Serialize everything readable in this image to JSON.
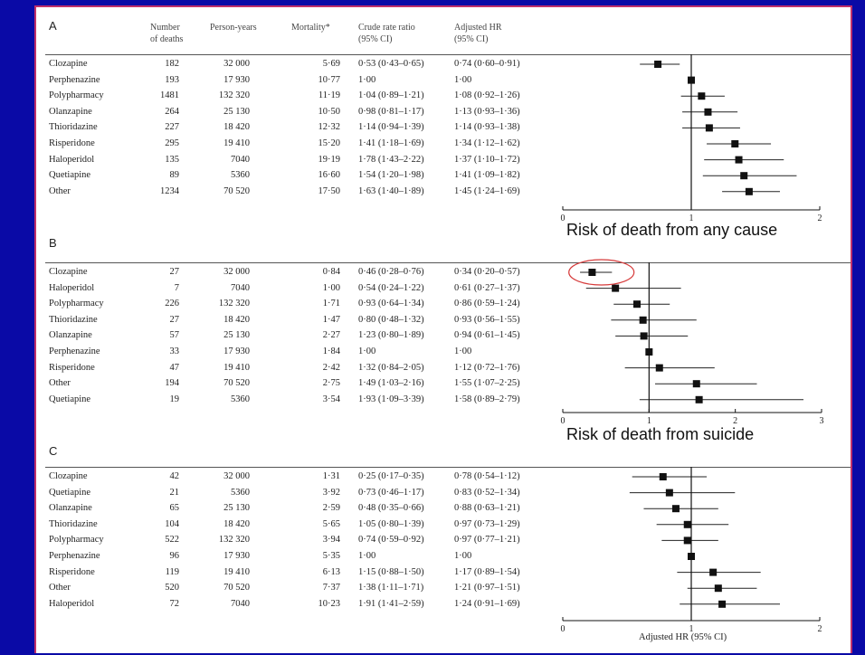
{
  "headers": {
    "deaths_line1": "Number",
    "deaths_line2": "of deaths",
    "person_years": "Person-years",
    "mortality": "Mortality*",
    "crude_line1": "Crude rate ratio",
    "crude_line2": "(95% CI)",
    "adj_line1": "Adjusted HR",
    "adj_line2": "(95% CI)"
  },
  "annotations": {
    "any_cause": "Risk of death from any cause",
    "suicide": "Risk of death from suicide",
    "x_axis_label": "Adjusted HR (95% CI)"
  },
  "colors": {
    "background": "#0a0aa6",
    "panel_border": "#c0306a",
    "highlight_ellipse": "#d63a3a"
  },
  "chart_data": [
    {
      "type": "forest",
      "panel": "A",
      "xlim": [
        0,
        2
      ],
      "xticks": [
        "0",
        "1",
        "2"
      ],
      "reference_line": 1,
      "rows": [
        {
          "drug": "Clozapine",
          "deaths": "182",
          "person_years": "32 000",
          "mortality": "5·69",
          "crude": "0·53 (0·43–0·65)",
          "adjusted": "0·74 (0·60–0·91)",
          "hr": 0.74,
          "lo": 0.6,
          "hi": 0.91
        },
        {
          "drug": "Perphenazine",
          "deaths": "193",
          "person_years": "17 930",
          "mortality": "10·77",
          "crude": "1·00",
          "adjusted": "1·00",
          "hr": 1.0,
          "lo": 1.0,
          "hi": 1.0
        },
        {
          "drug": "Polypharmacy",
          "deaths": "1481",
          "person_years": "132 320",
          "mortality": "11·19",
          "crude": "1·04 (0·89–1·21)",
          "adjusted": "1·08 (0·92–1·26)",
          "hr": 1.08,
          "lo": 0.92,
          "hi": 1.26
        },
        {
          "drug": "Olanzapine",
          "deaths": "264",
          "person_years": "25 130",
          "mortality": "10·50",
          "crude": "0·98 (0·81–1·17)",
          "adjusted": "1·13 (0·93–1·36)",
          "hr": 1.13,
          "lo": 0.93,
          "hi": 1.36
        },
        {
          "drug": "Thioridazine",
          "deaths": "227",
          "person_years": "18 420",
          "mortality": "12·32",
          "crude": "1·14 (0·94–1·39)",
          "adjusted": "1·14 (0·93–1·38)",
          "hr": 1.14,
          "lo": 0.93,
          "hi": 1.38
        },
        {
          "drug": "Risperidone",
          "deaths": "295",
          "person_years": "19 410",
          "mortality": "15·20",
          "crude": "1·41 (1·18–1·69)",
          "adjusted": "1·34 (1·12–1·62)",
          "hr": 1.34,
          "lo": 1.12,
          "hi": 1.62
        },
        {
          "drug": "Haloperidol",
          "deaths": "135",
          "person_years": "7040",
          "mortality": "19·19",
          "crude": "1·78 (1·43–2·22)",
          "adjusted": "1·37 (1·10–1·72)",
          "hr": 1.37,
          "lo": 1.1,
          "hi": 1.72
        },
        {
          "drug": "Quetiapine",
          "deaths": "89",
          "person_years": "5360",
          "mortality": "16·60",
          "crude": "1·54 (1·20–1·98)",
          "adjusted": "1·41 (1·09–1·82)",
          "hr": 1.41,
          "lo": 1.09,
          "hi": 1.82
        },
        {
          "drug": "Other",
          "deaths": "1234",
          "person_years": "70 520",
          "mortality": "17·50",
          "crude": "1·63 (1·40–1·89)",
          "adjusted": "1·45 (1·24–1·69)",
          "hr": 1.45,
          "lo": 1.24,
          "hi": 1.69
        }
      ]
    },
    {
      "type": "forest",
      "panel": "B",
      "xlim": [
        0,
        3
      ],
      "xticks": [
        "0",
        "1",
        "2",
        "3"
      ],
      "reference_line": 1,
      "rows": [
        {
          "drug": "Clozapine",
          "deaths": "27",
          "person_years": "32 000",
          "mortality": "0·84",
          "crude": "0·46 (0·28–0·76)",
          "adjusted": "0·34 (0·20–0·57)",
          "hr": 0.34,
          "lo": 0.2,
          "hi": 0.57
        },
        {
          "drug": "Haloperidol",
          "deaths": "7",
          "person_years": "7040",
          "mortality": "1·00",
          "crude": "0·54 (0·24–1·22)",
          "adjusted": "0·61 (0·27–1·37)",
          "hr": 0.61,
          "lo": 0.27,
          "hi": 1.37
        },
        {
          "drug": "Polypharmacy",
          "deaths": "226",
          "person_years": "132 320",
          "mortality": "1·71",
          "crude": "0·93 (0·64–1·34)",
          "adjusted": "0·86 (0·59–1·24)",
          "hr": 0.86,
          "lo": 0.59,
          "hi": 1.24
        },
        {
          "drug": "Thioridazine",
          "deaths": "27",
          "person_years": "18 420",
          "mortality": "1·47",
          "crude": "0·80 (0·48–1·32)",
          "adjusted": "0·93 (0·56–1·55)",
          "hr": 0.93,
          "lo": 0.56,
          "hi": 1.55
        },
        {
          "drug": "Olanzapine",
          "deaths": "57",
          "person_years": "25 130",
          "mortality": "2·27",
          "crude": "1·23 (0·80–1·89)",
          "adjusted": "0·94 (0·61–1·45)",
          "hr": 0.94,
          "lo": 0.61,
          "hi": 1.45
        },
        {
          "drug": "Perphenazine",
          "deaths": "33",
          "person_years": "17 930",
          "mortality": "1·84",
          "crude": "1·00",
          "adjusted": "1·00",
          "hr": 1.0,
          "lo": 1.0,
          "hi": 1.0
        },
        {
          "drug": "Risperidone",
          "deaths": "47",
          "person_years": "19 410",
          "mortality": "2·42",
          "crude": "1·32 (0·84–2·05)",
          "adjusted": "1·12 (0·72–1·76)",
          "hr": 1.12,
          "lo": 0.72,
          "hi": 1.76
        },
        {
          "drug": "Other",
          "deaths": "194",
          "person_years": "70 520",
          "mortality": "2·75",
          "crude": "1·49 (1·03–2·16)",
          "adjusted": "1·55 (1·07–2·25)",
          "hr": 1.55,
          "lo": 1.07,
          "hi": 2.25
        },
        {
          "drug": "Quetiapine",
          "deaths": "19",
          "person_years": "5360",
          "mortality": "3·54",
          "crude": "1·93 (1·09–3·39)",
          "adjusted": "1·58 (0·89–2·79)",
          "hr": 1.58,
          "lo": 0.89,
          "hi": 2.79
        }
      ]
    },
    {
      "type": "forest",
      "panel": "C",
      "xlim": [
        0,
        2
      ],
      "xticks": [
        "0",
        "1",
        "2"
      ],
      "reference_line": 1,
      "rows": [
        {
          "drug": "Clozapine",
          "deaths": "42",
          "person_years": "32 000",
          "mortality": "1·31",
          "crude": "0·25 (0·17–0·35)",
          "adjusted": "0·78 (0·54–1·12)",
          "hr": 0.78,
          "lo": 0.54,
          "hi": 1.12
        },
        {
          "drug": "Quetiapine",
          "deaths": "21",
          "person_years": "5360",
          "mortality": "3·92",
          "crude": "0·73 (0·46–1·17)",
          "adjusted": "0·83 (0·52–1·34)",
          "hr": 0.83,
          "lo": 0.52,
          "hi": 1.34
        },
        {
          "drug": "Olanzapine",
          "deaths": "65",
          "person_years": "25 130",
          "mortality": "2·59",
          "crude": "0·48 (0·35–0·66)",
          "adjusted": "0·88 (0·63–1·21)",
          "hr": 0.88,
          "lo": 0.63,
          "hi": 1.21
        },
        {
          "drug": "Thioridazine",
          "deaths": "104",
          "person_years": "18 420",
          "mortality": "5·65",
          "crude": "1·05 (0·80–1·39)",
          "adjusted": "0·97 (0·73–1·29)",
          "hr": 0.97,
          "lo": 0.73,
          "hi": 1.29
        },
        {
          "drug": "Polypharmacy",
          "deaths": "522",
          "person_years": "132 320",
          "mortality": "3·94",
          "crude": "0·74 (0·59–0·92)",
          "adjusted": "0·97 (0·77–1·21)",
          "hr": 0.97,
          "lo": 0.77,
          "hi": 1.21
        },
        {
          "drug": "Perphenazine",
          "deaths": "96",
          "person_years": "17 930",
          "mortality": "5·35",
          "crude": "1·00",
          "adjusted": "1·00",
          "hr": 1.0,
          "lo": 1.0,
          "hi": 1.0
        },
        {
          "drug": "Risperidone",
          "deaths": "119",
          "person_years": "19 410",
          "mortality": "6·13",
          "crude": "1·15 (0·88–1·50)",
          "adjusted": "1·17 (0·89–1·54)",
          "hr": 1.17,
          "lo": 0.89,
          "hi": 1.54
        },
        {
          "drug": "Other",
          "deaths": "520",
          "person_years": "70 520",
          "mortality": "7·37",
          "crude": "1·38 (1·11–1·71)",
          "adjusted": "1·21 (0·97–1·51)",
          "hr": 1.21,
          "lo": 0.97,
          "hi": 1.51
        },
        {
          "drug": "Haloperidol",
          "deaths": "72",
          "person_years": "7040",
          "mortality": "10·23",
          "crude": "1·91 (1·41–2·59)",
          "adjusted": "1·24 (0·91–1·69)",
          "hr": 1.24,
          "lo": 0.91,
          "hi": 1.69
        }
      ]
    }
  ]
}
